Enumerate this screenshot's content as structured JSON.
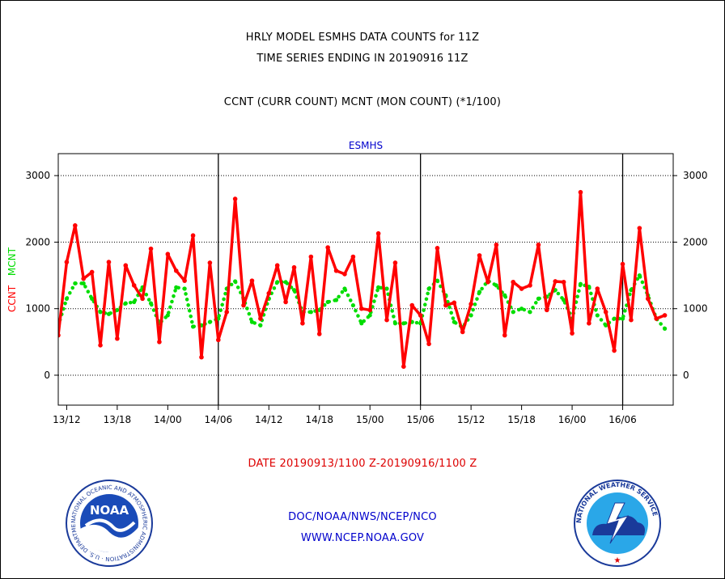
{
  "header": {
    "title_line1": "HRLY MODEL ESMHS DATA COUNTS for 11Z",
    "title_line2": "TIME SERIES ENDING IN 20190916 11Z",
    "title_line3": "CCNT (CURR COUNT) MCNT (MON COUNT) (*1/100)"
  },
  "footer": {
    "date_range": "DATE 20190913/1100 Z-20190916/1100 Z",
    "org": "DOC/NOAA/NWS/NCEP/NCO",
    "website": "WWW.NCEP.NOAA.GOV"
  },
  "logos": {
    "left_text": "NOAA",
    "left_ring": "NATIONAL OCEANIC AND ATMOSPHERIC ADMINISTRATION · U.S. DEPARTMENT OF COMMERCE",
    "right_ring": "NATIONAL WEATHER SERVICE"
  },
  "colors": {
    "ccnt": "#ff0000",
    "mcnt": "#00dd00",
    "text_blue": "#0000cc",
    "date_red": "#dd0000"
  },
  "chart_data": {
    "type": "line",
    "title": "ESMHS",
    "ylabel_left_parts": [
      "CCNT",
      "MCNT"
    ],
    "ylim": [
      -450,
      3330
    ],
    "yticks": [
      0,
      1000,
      2000,
      3000
    ],
    "ytick_labels": [
      "0",
      "1000",
      "2000",
      "3000"
    ],
    "xlim": [
      0,
      73
    ],
    "xticks": [
      1,
      7,
      13,
      19,
      25,
      31,
      37,
      43,
      49,
      55,
      61,
      67
    ],
    "xtick_labels": [
      "13/12",
      "13/18",
      "14/00",
      "14/06",
      "14/12",
      "14/18",
      "15/00",
      "15/06",
      "15/12",
      "15/18",
      "16/00",
      "16/06"
    ],
    "day_boundaries": [
      19,
      43,
      67
    ],
    "grid": true,
    "series": [
      {
        "name": "CCNT",
        "color": "#ff0000",
        "style": "solid",
        "values": [
          600,
          1700,
          2250,
          1450,
          1550,
          450,
          1700,
          550,
          1650,
          1350,
          1150,
          1900,
          500,
          1820,
          1570,
          1420,
          2100,
          270,
          1690,
          530,
          950,
          2650,
          1050,
          1420,
          850,
          1230,
          1650,
          1100,
          1620,
          780,
          1780,
          620,
          1920,
          1570,
          1520,
          1780,
          1000,
          980,
          2130,
          830,
          1690,
          130,
          1050,
          900,
          470,
          1910,
          1050,
          1090,
          650,
          1070,
          1800,
          1400,
          1960,
          600,
          1400,
          1300,
          1350,
          1960,
          980,
          1410,
          1400,
          630,
          2750,
          780,
          1300,
          950,
          370,
          1670,
          830,
          2210,
          1150,
          850,
          900
        ]
      },
      {
        "name": "MCNT",
        "color": "#00dd00",
        "style": "dotted",
        "values": [
          750,
          1150,
          1380,
          1380,
          1150,
          950,
          920,
          980,
          1080,
          1100,
          1320,
          1080,
          780,
          900,
          1320,
          1300,
          730,
          750,
          800,
          850,
          1300,
          1410,
          1150,
          800,
          750,
          1150,
          1400,
          1400,
          1280,
          950,
          950,
          980,
          1100,
          1130,
          1300,
          1050,
          780,
          900,
          1320,
          1300,
          780,
          780,
          800,
          780,
          1300,
          1420,
          1200,
          800,
          720,
          900,
          1250,
          1420,
          1350,
          1200,
          950,
          1000,
          950,
          1150,
          1180,
          1280,
          1130,
          850,
          1370,
          1330,
          900,
          750,
          850,
          850,
          1280,
          1500,
          1200,
          850,
          700
        ]
      }
    ]
  }
}
